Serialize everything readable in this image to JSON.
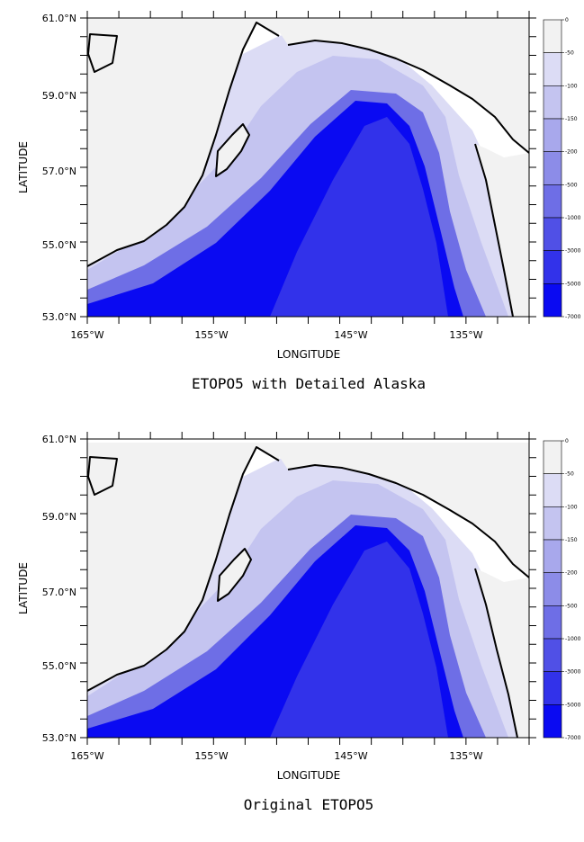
{
  "colors": {
    "land": "#f2f2f2",
    "coast": "#000000",
    "levels": [
      "#f2f2f2",
      "#dcdcf5",
      "#c4c4f0",
      "#a8a8ec",
      "#8c8ce8",
      "#6e6ee6",
      "#5050e6",
      "#3232ea",
      "#0a0af2"
    ]
  },
  "colorbar_labels": [
    "0",
    "-50",
    "-100",
    "-150",
    "-200",
    "-500",
    "-1000",
    "-3000",
    "-5000",
    "-7000"
  ],
  "panels": [
    {
      "id": "detailed",
      "title": "ETOPO5 with Detailed Alaska",
      "xlabel": "LONGITUDE",
      "ylabel": "LATITUDE",
      "x_ticks": [
        "165°W",
        "155°W",
        "145°W",
        "135°W"
      ],
      "y_ticks": [
        "61.0°N",
        "59.0°N",
        "57.0°N",
        "55.0°N",
        "53.0°N"
      ]
    },
    {
      "id": "original",
      "title": "Original ETOPO5",
      "xlabel": "LONGITUDE",
      "ylabel": "LATITUDE",
      "x_ticks": [
        "165°W",
        "155°W",
        "145°W",
        "135°W"
      ],
      "y_ticks": [
        "61.0°N",
        "59.0°N",
        "57.0°N",
        "55.0°N",
        "53.0°N"
      ]
    }
  ]
}
